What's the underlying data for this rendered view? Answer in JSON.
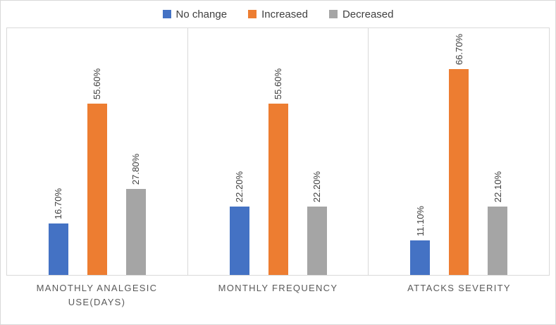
{
  "chart_data": {
    "type": "bar",
    "title": "",
    "categories": [
      "MANOTHLY ANALGESIC USE(DAYS)",
      "MONTHLY FREQUENCY",
      "ATTACKS SEVERITY"
    ],
    "series": [
      {
        "name": "No change",
        "color": "#4472C4",
        "values": [
          16.7,
          22.2,
          11.1
        ],
        "labels": [
          "16.70%",
          "22.20%",
          "11.10%"
        ]
      },
      {
        "name": "Increased",
        "color": "#ED7D31",
        "values": [
          55.6,
          55.6,
          66.7
        ],
        "labels": [
          "55.60%",
          "55.60%",
          "66.70%"
        ]
      },
      {
        "name": "Decreased",
        "color": "#A5A5A5",
        "values": [
          27.8,
          22.2,
          22.1
        ],
        "labels": [
          "27.80%",
          "22.20%",
          "22.10%"
        ]
      }
    ],
    "xlabel": "",
    "ylabel": "",
    "ylim": [
      0,
      80
    ],
    "grid": false,
    "legend_position": "top",
    "data_labels_rotated": true,
    "panel_border_color": "#d9d9d9"
  }
}
